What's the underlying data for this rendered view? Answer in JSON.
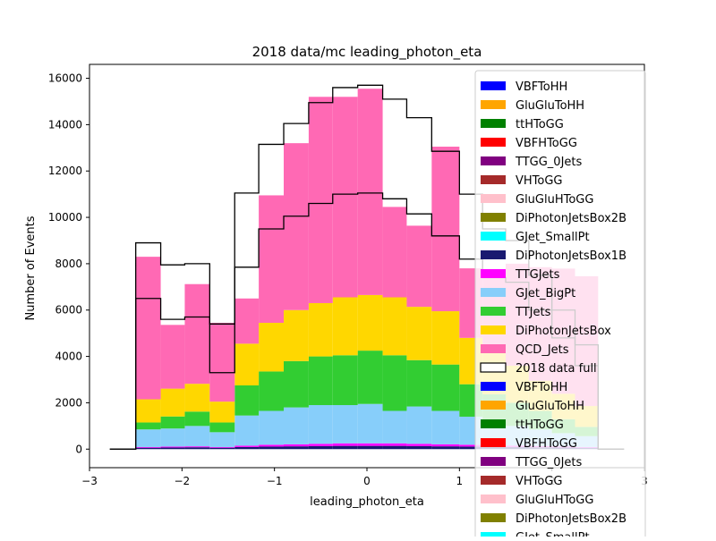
{
  "chart_data": {
    "type": "bar",
    "subtype": "stacked-step-histogram",
    "title": "2018 data/mc leading_photon_eta",
    "xlabel": "leading_photon_eta",
    "ylabel": "Number of Events",
    "xlim": [
      -3.0,
      3.0
    ],
    "ylim": [
      -800,
      16600
    ],
    "xticks": [
      -3,
      -2,
      -1,
      0,
      1,
      2,
      3
    ],
    "xtick_labels": [
      "−3",
      "−2",
      "−1",
      "0",
      "1",
      "2",
      "3"
    ],
    "yticks": [
      0,
      2000,
      4000,
      6000,
      8000,
      10000,
      12000,
      14000,
      16000
    ],
    "ytick_labels": [
      "0",
      "2000",
      "4000",
      "6000",
      "8000",
      "10000",
      "12000",
      "14000",
      "16000"
    ],
    "grid": false,
    "legend_position": "right (overflows the axes, clipped at the bottom)",
    "bin_edges": [
      -2.5,
      -2.23,
      -1.97,
      -1.7,
      -1.43,
      -1.17,
      -0.9,
      -0.63,
      -0.37,
      -0.1,
      0.17,
      0.43,
      0.7,
      1.0,
      1.25,
      1.5,
      1.75,
      2.0,
      2.25,
      2.5
    ],
    "stacked_mc": [
      {
        "name": "DiPhotonJetsBox1B",
        "color": "#191970",
        "values": [
          60,
          70,
          80,
          60,
          90,
          110,
          120,
          130,
          140,
          140,
          140,
          130,
          120,
          110,
          100,
          90,
          80,
          70,
          60
        ]
      },
      {
        "name": "TTGJets",
        "color": "#ff00ff",
        "values": [
          30,
          40,
          40,
          30,
          60,
          80,
          90,
          100,
          110,
          110,
          110,
          100,
          90,
          80,
          70,
          60,
          50,
          40,
          30
        ]
      },
      {
        "name": "GJet_BigPt",
        "color": "#87cefa",
        "values": [
          760,
          780,
          880,
          640,
          1300,
          1460,
          1590,
          1670,
          1650,
          1700,
          1400,
          1610,
          1440,
          1210,
          1000,
          850,
          720,
          580,
          470
        ]
      },
      {
        "name": "TTJets",
        "color": "#32cd32",
        "values": [
          300,
          520,
          620,
          420,
          1300,
          1700,
          2000,
          2100,
          2150,
          2300,
          2400,
          2000,
          2000,
          1400,
          1200,
          1000,
          800,
          600,
          400
        ]
      },
      {
        "name": "DiPhotonJetsBox",
        "color": "#ffd700",
        "values": [
          1000,
          1200,
          1200,
          900,
          1800,
          2100,
          2200,
          2300,
          2500,
          2400,
          2500,
          2300,
          2300,
          2000,
          1800,
          1600,
          1300,
          1100,
          900
        ]
      },
      {
        "name": "QCD_Jets",
        "color": "#ff69b4",
        "values": [
          6150,
          2750,
          4300,
          3400,
          1950,
          5500,
          7200,
          8900,
          8650,
          8900,
          3900,
          3500,
          7100,
          3000,
          3300,
          4400,
          4900,
          5400,
          5600
        ]
      }
    ],
    "data": {
      "name": "2018 data full",
      "color": "#000000",
      "values": [
        8900,
        7950,
        8000,
        5400,
        11050,
        13150,
        14050,
        14950,
        15600,
        15700,
        15100,
        14300,
        12850,
        11000,
        9500,
        9000,
        7500,
        6000,
        4500
      ]
    },
    "data_overlay_2": {
      "color": "#000000",
      "values": [
        6500,
        5600,
        5700,
        3300,
        7850,
        9500,
        10050,
        10600,
        11000,
        11050,
        10800,
        10150,
        9200,
        8200,
        7400,
        7200,
        6000,
        4800,
        3600
      ]
    },
    "legend": [
      {
        "label": "VBFToHH",
        "color": "#0000ff"
      },
      {
        "label": "GluGluToHH",
        "color": "#ffa500"
      },
      {
        "label": "ttHToGG",
        "color": "#008000"
      },
      {
        "label": "VBFHToGG",
        "color": "#ff0000"
      },
      {
        "label": "TTGG_0Jets",
        "color": "#800080"
      },
      {
        "label": "VHToGG",
        "color": "#a52a2a"
      },
      {
        "label": "GluGluHToGG",
        "color": "#ffc0cb"
      },
      {
        "label": "DiPhotonJetsBox2B",
        "color": "#808000"
      },
      {
        "label": "GJet_SmallPt",
        "color": "#00ffff"
      },
      {
        "label": "DiPhotonJetsBox1B",
        "color": "#191970"
      },
      {
        "label": "TTGJets",
        "color": "#ff00ff"
      },
      {
        "label": "GJet_BigPt",
        "color": "#87cefa"
      },
      {
        "label": "TTJets",
        "color": "#32cd32"
      },
      {
        "label": "DiPhotonJetsBox",
        "color": "#ffd700"
      },
      {
        "label": "QCD_Jets",
        "color": "#ff69b4"
      },
      {
        "label": "2018 data full",
        "color": "#ffffff",
        "outline": "#000000"
      },
      {
        "label": "VBFToHH",
        "color": "#0000ff"
      },
      {
        "label": "GluGluToHH",
        "color": "#ffa500"
      },
      {
        "label": "ttHToGG",
        "color": "#008000"
      },
      {
        "label": "VBFHToGG",
        "color": "#ff0000"
      },
      {
        "label": "TTGG_0Jets",
        "color": "#800080"
      },
      {
        "label": "VHToGG",
        "color": "#a52a2a"
      },
      {
        "label": "GluGluHToGG",
        "color": "#ffc0cb"
      },
      {
        "label": "DiPhotonJetsBox2B",
        "color": "#808000"
      },
      {
        "label": "GJet_SmallPt",
        "color": "#00ffff"
      }
    ]
  }
}
